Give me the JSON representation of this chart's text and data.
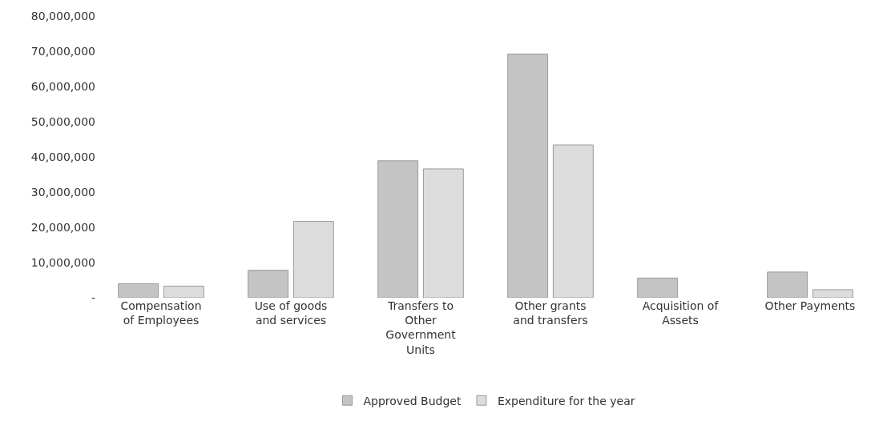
{
  "chart_data": {
    "type": "bar",
    "categories": [
      "Compensation of Employees",
      "Use of goods and services",
      "Transfers to Other Government Units",
      "Other grants and transfers",
      "Acquisition of Assets",
      "Other Payments"
    ],
    "series": [
      {
        "name": "Approved Budget",
        "color": "#c4c4c4",
        "values": [
          4000000,
          7800000,
          38900000,
          69200000,
          5600000,
          7300000
        ]
      },
      {
        "name": "Expenditure for the year",
        "color": "#dcdcdc",
        "values": [
          3300000,
          21700000,
          36600000,
          43400000,
          null,
          2300000
        ]
      }
    ],
    "ylim": [
      0,
      80000000
    ],
    "yticks": [
      {
        "value": 0,
        "label": "-"
      },
      {
        "value": 10000000,
        "label": "10,000,000"
      },
      {
        "value": 20000000,
        "label": "20,000,000"
      },
      {
        "value": 30000000,
        "label": "30,000,000"
      },
      {
        "value": 40000000,
        "label": "40,000,000"
      },
      {
        "value": 50000000,
        "label": "50,000,000"
      },
      {
        "value": 60000000,
        "label": "60,000,000"
      },
      {
        "value": 70000000,
        "label": "70,000,000"
      },
      {
        "value": 80000000,
        "label": "80,000,000"
      }
    ],
    "grid": false,
    "legend": "bottom"
  }
}
